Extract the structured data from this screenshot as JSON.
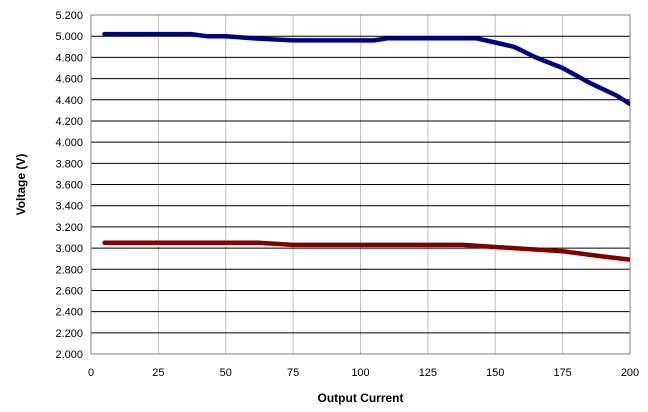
{
  "chart_data": {
    "type": "line",
    "title": "",
    "xlabel": "Output Current",
    "ylabel": "Voltage (V)",
    "xlim": [
      0,
      200
    ],
    "ylim": [
      2.0,
      5.2
    ],
    "x_ticks": [
      0,
      25,
      50,
      75,
      100,
      125,
      150,
      175,
      200
    ],
    "y_ticks": [
      2.0,
      2.2,
      2.4,
      2.6,
      2.8,
      3.0,
      3.2,
      3.4,
      3.6,
      3.8,
      4.0,
      4.2,
      4.4,
      4.6,
      4.8,
      5.0,
      5.2
    ],
    "x_tick_labels": [
      "0",
      "25",
      "50",
      "75",
      "100",
      "125",
      "150",
      "175",
      "200"
    ],
    "y_tick_labels": [
      "2.000",
      "2.200",
      "2.400",
      "2.600",
      "2.800",
      "3.000",
      "3.200",
      "3.400",
      "3.600",
      "3.800",
      "4.000",
      "4.200",
      "4.400",
      "4.600",
      "4.800",
      "5.000",
      "5.200"
    ],
    "grid": {
      "vertical": true,
      "horizontal": true
    },
    "legend": "none",
    "series": [
      {
        "color": "#000080",
        "x": [
          5,
          20,
          37,
          43,
          50,
          60,
          75,
          90,
          105,
          110,
          125,
          143,
          150,
          157,
          165,
          175,
          185,
          195,
          200
        ],
        "y": [
          5.02,
          5.02,
          5.02,
          5.0,
          5.0,
          4.98,
          4.96,
          4.96,
          4.96,
          4.98,
          4.98,
          4.98,
          4.94,
          4.9,
          4.8,
          4.7,
          4.56,
          4.44,
          4.36
        ]
      },
      {
        "color": "#800000",
        "x": [
          5,
          25,
          50,
          62,
          75,
          100,
          138,
          150,
          175,
          190,
          200
        ],
        "y": [
          3.05,
          3.05,
          3.05,
          3.05,
          3.03,
          3.03,
          3.03,
          3.01,
          2.97,
          2.92,
          2.89
        ]
      }
    ]
  }
}
